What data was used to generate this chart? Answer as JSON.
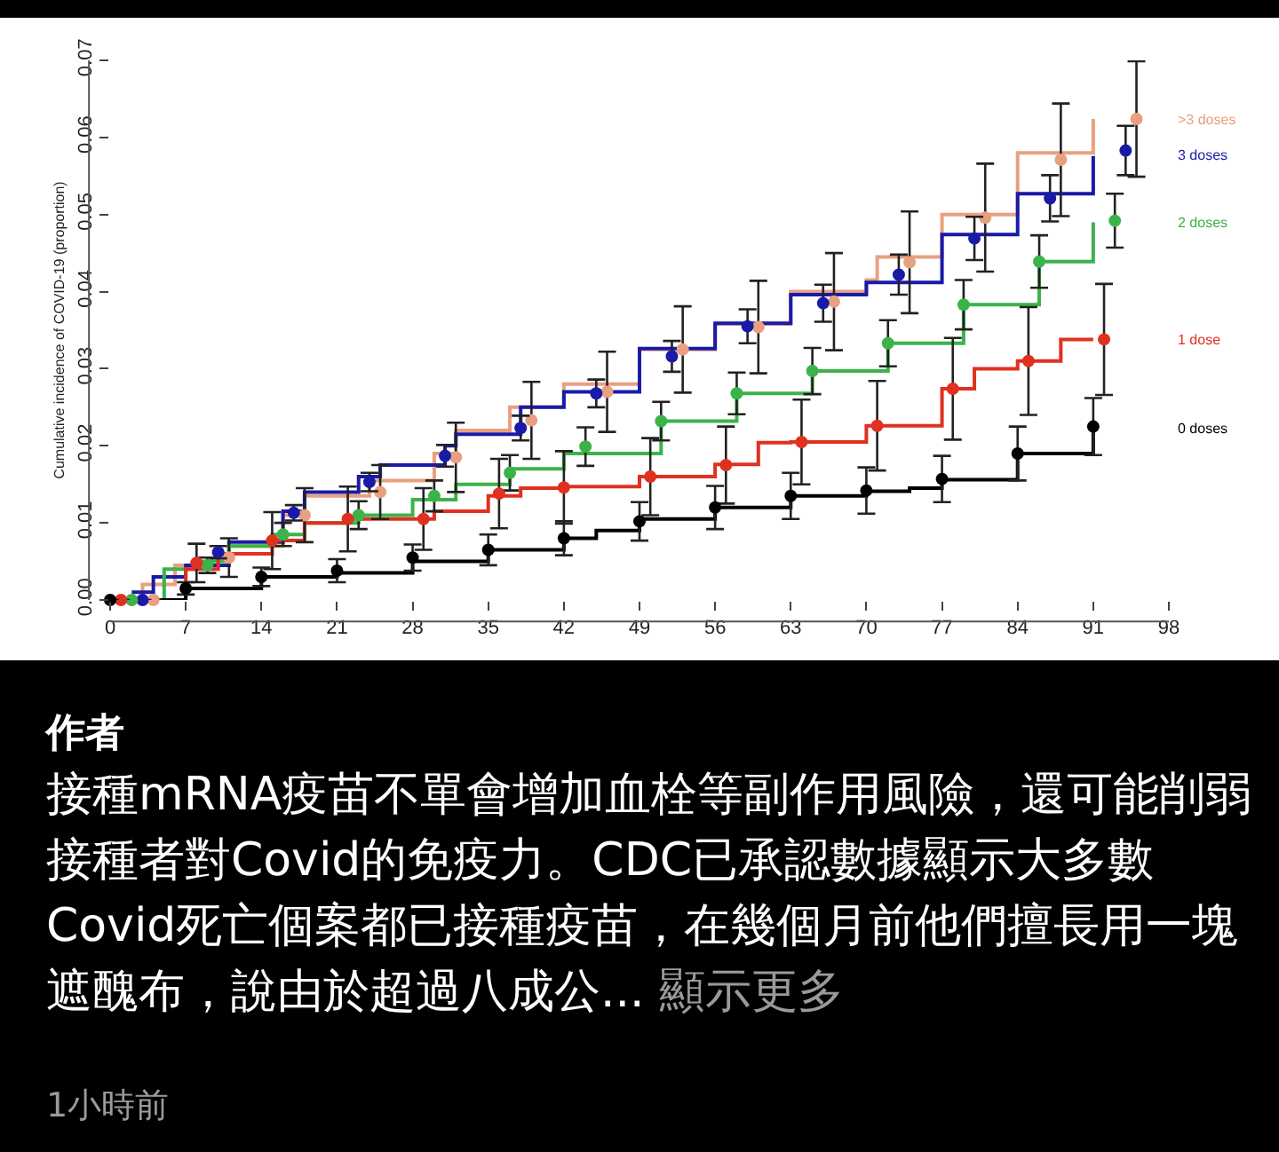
{
  "chart_data": {
    "type": "step",
    "ylabel": "Cumulative incidence of COVID-19 (proportion)",
    "xlim": [
      0,
      98
    ],
    "ylim": [
      0,
      0.07
    ],
    "xticks": [
      0,
      7,
      14,
      21,
      28,
      35,
      42,
      49,
      56,
      63,
      70,
      77,
      84,
      91,
      98
    ],
    "yticks": [
      {
        "value": 0,
        "label": "0.00"
      },
      {
        "value": 0.01,
        "label": "0.01"
      },
      {
        "value": 0.02,
        "label": "0.02"
      },
      {
        "value": 0.03,
        "label": "0.03"
      },
      {
        "value": 0.04,
        "label": "0.04"
      },
      {
        "value": 0.05,
        "label": "0.05"
      },
      {
        "value": 0.06,
        "label": "0.06"
      },
      {
        "value": 0.07,
        "label": "0.07"
      }
    ],
    "series": [
      {
        "name": ">3 doses",
        "marker": "none",
        "color": "#e8a080",
        "x": [
          1,
          3,
          6,
          11,
          16,
          18,
          24,
          30,
          32,
          37,
          42,
          49,
          56,
          63,
          70,
          71,
          77,
          84,
          91
        ],
        "values": [
          0,
          0.002,
          0.0045,
          0.007,
          0.011,
          0.0135,
          0.0155,
          0.019,
          0.022,
          0.025,
          0.028,
          0.0325,
          0.0358,
          0.04,
          0.0415,
          0.0445,
          0.05,
          0.058,
          0.0624
        ]
      },
      {
        "name": "3 doses",
        "marker": "none",
        "color": "#1a1aa8",
        "x": [
          2,
          4,
          7,
          11,
          16,
          18,
          23,
          25,
          31,
          32,
          38,
          42,
          49,
          56,
          63,
          70,
          77,
          84,
          91
        ],
        "values": [
          0.001,
          0.003,
          0.0045,
          0.0075,
          0.0115,
          0.014,
          0.016,
          0.0175,
          0.02,
          0.0215,
          0.025,
          0.027,
          0.0326,
          0.0359,
          0.0396,
          0.0412,
          0.0474,
          0.0527,
          0.0576
        ]
      },
      {
        "name": "2 doses",
        "marker": "none",
        "color": "#3cb34a",
        "x": [
          2,
          5,
          8,
          11,
          15,
          18,
          23,
          28,
          32,
          37,
          42,
          51,
          58,
          65,
          72,
          79,
          86,
          91
        ],
        "values": [
          0,
          0.004,
          0.005,
          0.007,
          0.0085,
          0.01,
          0.011,
          0.013,
          0.015,
          0.017,
          0.019,
          0.0232,
          0.0268,
          0.0297,
          0.0333,
          0.0383,
          0.0439,
          0.049
        ]
      },
      {
        "name": "1 dose",
        "marker": "none",
        "color": "#e03020",
        "x": [
          1,
          7,
          10,
          15,
          18,
          22,
          30,
          35,
          38,
          42,
          49,
          56,
          60,
          63,
          70,
          77,
          80,
          84,
          88,
          91
        ],
        "values": [
          0,
          0.004,
          0.006,
          0.0077,
          0.01,
          0.0105,
          0.0115,
          0.0135,
          0.0145,
          0.0147,
          0.016,
          0.0176,
          0.0204,
          0.0205,
          0.0226,
          0.0274,
          0.03,
          0.031,
          0.0338,
          0.0338
        ]
      },
      {
        "name": "0 doses",
        "marker": "none",
        "color": "#000000",
        "x": [
          0,
          7,
          14,
          21,
          28,
          35,
          42,
          45,
          49,
          56,
          63,
          70,
          74,
          77,
          84,
          91
        ],
        "values": [
          0,
          0.0015,
          0.003,
          0.0035,
          0.005,
          0.0065,
          0.008,
          0.009,
          0.0105,
          0.012,
          0.0135,
          0.0141,
          0.0145,
          0.0156,
          0.019,
          0.0223
        ]
      },
      {
        "type": "scatter",
        "marker": "circle",
        "color": "#e8a080",
        "x": [
          4,
          11,
          18,
          25,
          32,
          39,
          46,
          53,
          60,
          67,
          74,
          81,
          88,
          95
        ],
        "values": [
          0,
          0.0055,
          0.011,
          0.014,
          0.0185,
          0.0233,
          0.027,
          0.0325,
          0.0354,
          0.0387,
          0.0438,
          0.0496,
          0.0571,
          0.0624
        ],
        "errors": [
          null,
          0.0025,
          0.0035,
          0.0035,
          0.0045,
          0.005,
          0.0052,
          0.0056,
          0.006,
          0.0063,
          0.0066,
          0.007,
          0.0073,
          0.0075
        ]
      },
      {
        "type": "scatter",
        "marker": "circle",
        "color": "#1a1aa8",
        "x": [
          3,
          10,
          17,
          24,
          31,
          38,
          45,
          52,
          59,
          66,
          73,
          80,
          87,
          94
        ],
        "values": [
          0,
          0.0062,
          0.0113,
          0.0153,
          0.0187,
          0.0223,
          0.0268,
          0.0316,
          0.0355,
          0.0385,
          0.0422,
          0.0469,
          0.0521,
          0.0583
        ],
        "errors": [
          null,
          0.0008,
          0.001,
          0.0012,
          0.0014,
          0.0016,
          0.0018,
          0.002,
          0.0022,
          0.0024,
          0.0026,
          0.0028,
          0.003,
          0.0032
        ]
      },
      {
        "type": "scatter",
        "marker": "circle",
        "color": "#3cb34a",
        "x": [
          2,
          9,
          16,
          23,
          30,
          37,
          44,
          51,
          58,
          65,
          72,
          79,
          86,
          93
        ],
        "values": [
          0,
          0.0045,
          0.0085,
          0.011,
          0.0135,
          0.0165,
          0.0199,
          0.0232,
          0.0268,
          0.0297,
          0.0333,
          0.0383,
          0.0439,
          0.0492
        ],
        "errors": [
          null,
          0.001,
          0.0015,
          0.0018,
          0.002,
          0.0023,
          0.0025,
          0.0025,
          0.0027,
          0.003,
          0.003,
          0.0032,
          0.0034,
          0.0035
        ]
      },
      {
        "type": "scatter",
        "marker": "circle",
        "color": "#e03020",
        "x": [
          1,
          8,
          15,
          22,
          29,
          36,
          42,
          50,
          57,
          64,
          71,
          78,
          85,
          92
        ],
        "values": [
          0,
          0.0048,
          0.0077,
          0.0105,
          0.0105,
          0.0138,
          0.0146,
          0.016,
          0.0175,
          0.0205,
          0.0226,
          0.0274,
          0.031,
          0.0338
        ],
        "errors": [
          null,
          0.0025,
          0.0037,
          0.0042,
          0.004,
          0.0045,
          0.0047,
          0.005,
          0.005,
          0.0055,
          0.0058,
          0.0066,
          0.007,
          0.0072
        ]
      },
      {
        "type": "scatter",
        "marker": "circle",
        "color": "#000000",
        "x": [
          0,
          7,
          14,
          21,
          28,
          35,
          42,
          49,
          56,
          63,
          70,
          77,
          84,
          91
        ],
        "values": [
          0,
          0.0015,
          0.003,
          0.0038,
          0.0055,
          0.0065,
          0.008,
          0.0102,
          0.012,
          0.0135,
          0.0142,
          0.0157,
          0.019,
          0.0225
        ],
        "errors": [
          null,
          0.0008,
          0.0012,
          0.0015,
          0.0017,
          0.002,
          0.0022,
          0.0025,
          0.0028,
          0.003,
          0.003,
          0.003,
          0.0035,
          0.0037
        ]
      }
    ],
    "annotations": [
      "作者",
      "接種mRNA疫苗不單會增加血栓等副作用風險，還可能削弱接種者對Covid的免疫力。CDC已承認數據顯示大多數Covid死亡個案都已接種疫苗，在幾個月前他們擅長用一塊遮醜布，說由於超過八成公...",
      "顯示更多",
      "1小時前"
    ]
  }
}
